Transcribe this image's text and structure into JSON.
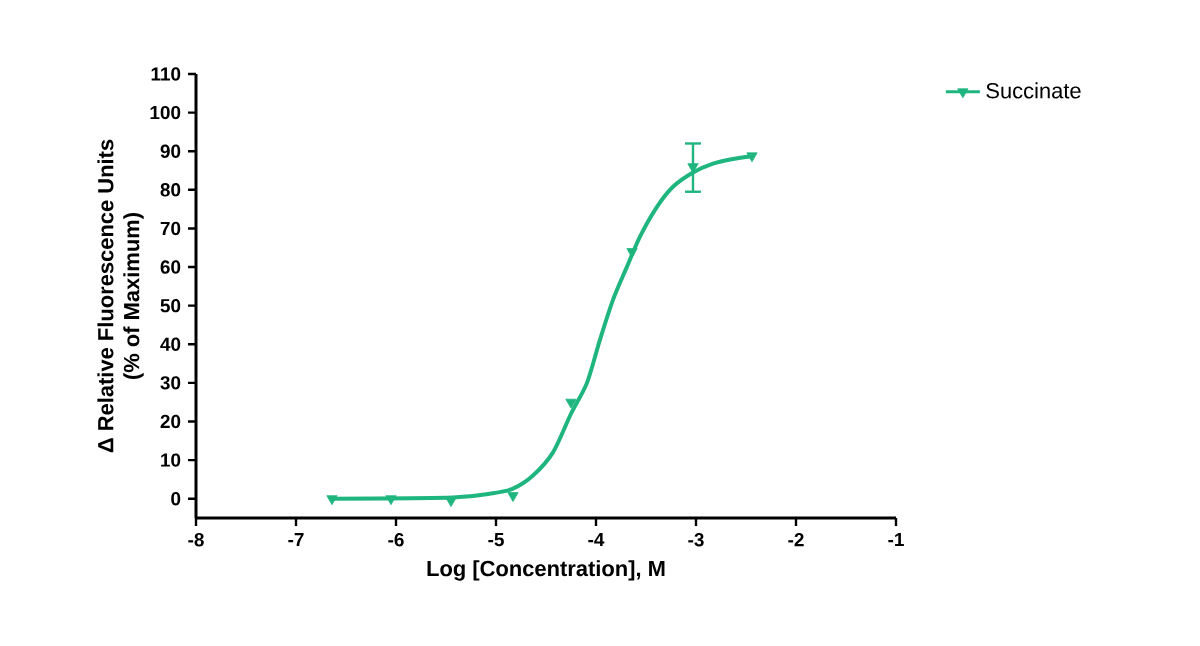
{
  "chart_data": {
    "type": "scatter",
    "xlabel": "Log [Concentration], M",
    "ylabel": "Δ Relative Fluorescence Units\n(% of Maximum)",
    "xlim": [
      -8,
      -1
    ],
    "xticks": [
      -8,
      -7,
      -6,
      -5,
      -4,
      -3,
      -2,
      -1
    ],
    "ylim": [
      -5,
      110
    ],
    "yticks": [
      0,
      10,
      20,
      30,
      40,
      50,
      60,
      70,
      80,
      90,
      100,
      110
    ],
    "legend": "top right",
    "grid": false,
    "series": [
      {
        "name": "Succinate",
        "marker": "triangle",
        "color": "#1fb57f",
        "x": [
          -6.64,
          -6.05,
          -5.45,
          -4.83,
          -4.25,
          -3.64,
          -3.03,
          -2.44
        ],
        "values": [
          0,
          0,
          -0.5,
          0.8,
          25,
          64,
          86,
          88.8
        ],
        "errors": [
          null,
          null,
          null,
          null,
          null,
          null,
          [
            79.5,
            92
          ],
          null
        ]
      },
      {
        "type": "line",
        "marker": "none",
        "color": "#1fb57f",
        "x": [
          -6.64,
          -5.43,
          -5.03,
          -4.83,
          -4.63,
          -4.43,
          -4.25,
          -4.09,
          -3.96,
          -3.83,
          -3.69,
          -3.56,
          -3.39,
          -3.23,
          -3.03,
          -2.83,
          -2.63,
          -2.44
        ],
        "values": [
          0,
          0.3,
          1.4,
          2.6,
          6.0,
          12.0,
          22,
          30.0,
          41.2,
          51.5,
          60.1,
          67.9,
          75.6,
          80.8,
          84.5,
          86.8,
          88.0,
          88.7
        ]
      }
    ]
  }
}
